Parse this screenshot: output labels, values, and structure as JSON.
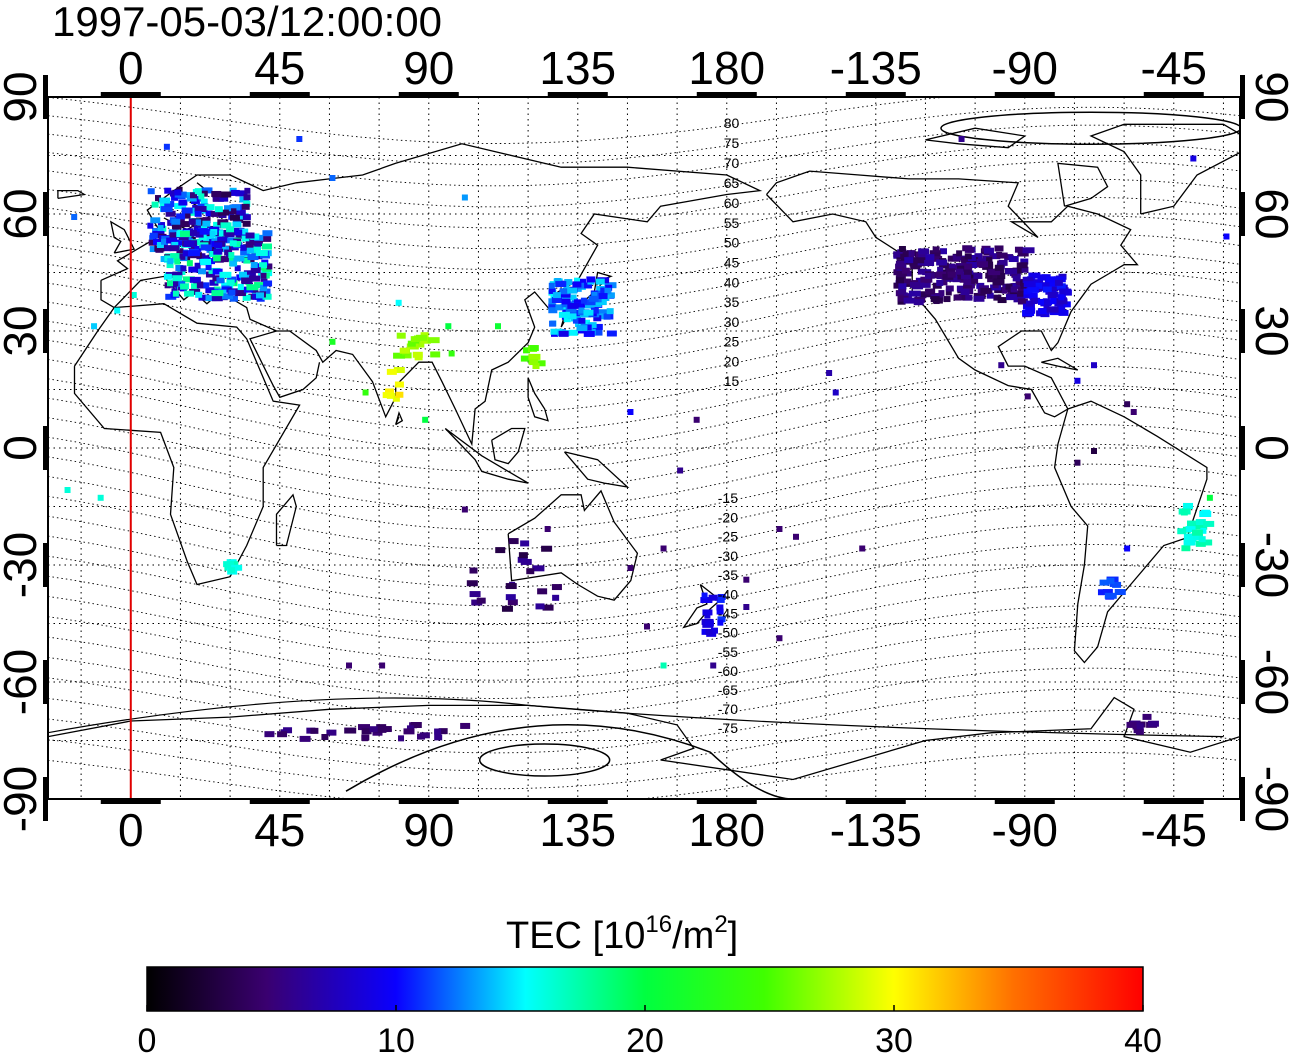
{
  "title": "1997-05-03/12:00:00",
  "top_ticks": [
    "0",
    "45",
    "90",
    "135",
    "180",
    "-135",
    "-90",
    "-45"
  ],
  "bottom_ticks": [
    "0",
    "45",
    "90",
    "135",
    "180",
    "-135",
    "-90",
    "-45"
  ],
  "left_ticks": [
    "90",
    "60",
    "30",
    "0",
    "-30",
    "-60",
    "-90"
  ],
  "right_ticks": [
    "90",
    "60",
    "30",
    "0",
    "-30",
    "-60",
    "-90"
  ],
  "map": {
    "lon_range_east": [
      -25,
      335
    ],
    "lat_range": [
      -90,
      90
    ],
    "lon_tick_values_east": [
      0,
      45,
      90,
      135,
      180,
      225,
      270,
      315
    ],
    "lat_tick_values": [
      90,
      60,
      30,
      0,
      -30,
      -60,
      -90
    ],
    "reference_meridian_east": 0,
    "reference_meridian_color": "#e00000",
    "grid": "dotted, 15 degree spacing",
    "contour_labels_north": [
      "80",
      "75",
      "70",
      "65",
      "60",
      "55",
      "50",
      "45",
      "40",
      "35",
      "30",
      "25",
      "20",
      "15"
    ],
    "contour_labels_south": [
      "-15",
      "-20",
      "-25",
      "-30",
      "-35",
      "-40",
      "-45",
      "-50",
      "-55",
      "-60",
      "-65",
      "-70",
      "-75"
    ],
    "tec_cells": [
      {
        "lon": 20,
        "lat": 58,
        "tec": 10,
        "region": "Europe"
      },
      {
        "lon": 25,
        "lat": 48,
        "tec": 12,
        "region": "Europe"
      },
      {
        "lon": 135,
        "lat": 37,
        "tec": 12,
        "region": "Japan"
      },
      {
        "lon": 120,
        "lat": 24,
        "tec": 26,
        "region": "Taiwan"
      },
      {
        "lon": 85,
        "lat": 27,
        "tec": 27,
        "region": "India north"
      },
      {
        "lon": 78,
        "lat": 17,
        "tec": 30,
        "region": "India"
      },
      {
        "lon": 250,
        "lat": 45,
        "tec": 5,
        "region": "North America"
      },
      {
        "lon": 275,
        "lat": 40,
        "tec": 9,
        "region": "North America east"
      },
      {
        "lon": 320,
        "lat": -20,
        "tec": 16,
        "region": "Brazil"
      },
      {
        "lon": 295,
        "lat": -35,
        "tec": 11,
        "region": "Argentina"
      },
      {
        "lon": 30,
        "lat": -30,
        "tec": 16,
        "region": "South Africa"
      },
      {
        "lon": 175,
        "lat": -42,
        "tec": 10,
        "region": "New Zealand"
      },
      {
        "lon": 115,
        "lat": -32,
        "tec": 5,
        "region": "Australia"
      },
      {
        "lon": 70,
        "lat": -72,
        "tec": 5,
        "region": "Antarctica"
      },
      {
        "lon": 305,
        "lat": -70,
        "tec": 5,
        "region": "Antarctic Peninsula"
      }
    ]
  },
  "colorbar": {
    "label_main": "TEC  [10",
    "label_exp": "16",
    "label_mid": "/m",
    "label_exp2": "2",
    "label_end": "]",
    "ticks": [
      "0",
      "10",
      "20",
      "30",
      "40"
    ],
    "range": [
      0,
      40
    ],
    "colors": [
      "#000000",
      "#3c0070",
      "#1000ff",
      "#00ffff",
      "#00ff00",
      "#ffff00",
      "#ff8000",
      "#ff0000"
    ]
  }
}
